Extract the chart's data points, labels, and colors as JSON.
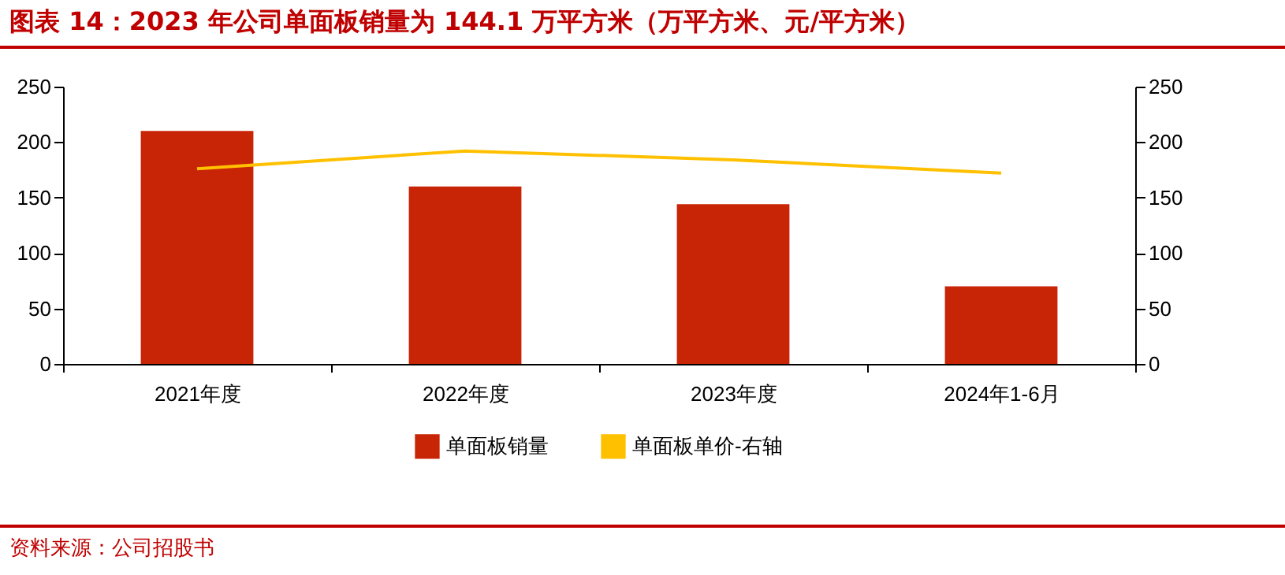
{
  "chart_data": {
    "type": "bar",
    "title": "图表 14：2023 年公司单面板销量为 144.1 万平方米（万平方米、元/平方米）",
    "categories": [
      "2021年度",
      "2022年度",
      "2023年度",
      "2024年1-6月"
    ],
    "series": [
      {
        "name": "单面板销量",
        "color": "#c82406",
        "values": [
          210,
          160,
          144,
          70
        ]
      },
      {
        "name": "单面板单价-右轴",
        "type": "line",
        "axis": "y2",
        "color": "#ffc000",
        "values": [
          176,
          192,
          184,
          172
        ]
      }
    ],
    "ylim": [
      0,
      250
    ],
    "yticks": [
      0,
      50,
      100,
      150,
      200,
      250
    ],
    "y2lim": [
      0,
      250
    ],
    "y2ticks": [
      0,
      50,
      100,
      150,
      200,
      250
    ],
    "grid": false,
    "legend": "bottom",
    "marker": "none",
    "annotations": [
      "资料来源：公司招股书"
    ]
  }
}
